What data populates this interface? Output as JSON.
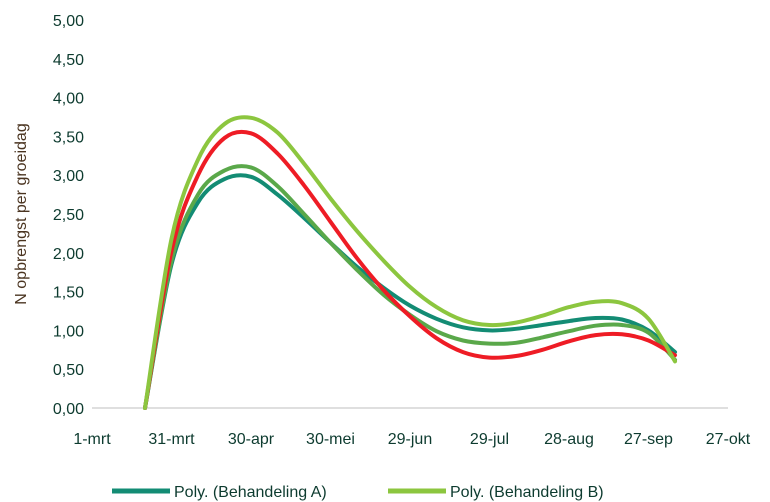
{
  "chart_data": {
    "type": "line",
    "title": "",
    "xlabel": "",
    "ylabel": "N opbrengst per groeidag",
    "x_ticks": [
      "1-mrt",
      "31-mrt",
      "30-apr",
      "30-mei",
      "29-jun",
      "29-jul",
      "28-aug",
      "27-sep",
      "27-okt"
    ],
    "y_ticks": [
      "0,00",
      "0,50",
      "1,00",
      "1,50",
      "2,00",
      "2,50",
      "3,00",
      "3,50",
      "4,00",
      "4,50",
      "5,00"
    ],
    "xlim": [
      "1-mrt",
      "27-okt"
    ],
    "ylim": [
      0,
      5
    ],
    "grid": false,
    "legend_position": "bottom",
    "x_dates": [
      "21-mrt",
      "31-mrt",
      "10-apr",
      "20-apr",
      "30-apr",
      "10-mei",
      "20-mei",
      "30-mei",
      "9-jun",
      "19-jun",
      "29-jun",
      "9-jul",
      "19-jul",
      "29-jul",
      "8-aug",
      "18-aug",
      "28-aug",
      "7-sep",
      "17-sep",
      "27-sep",
      "7-okt"
    ],
    "x": [
      20,
      30,
      40,
      50,
      60,
      70,
      80,
      90,
      100,
      110,
      120,
      130,
      140,
      150,
      160,
      170,
      180,
      190,
      200,
      210,
      220
    ],
    "series": [
      {
        "name": "Poly. (Behandeling A)",
        "color": "#138c74",
        "values": [
          0.0,
          1.85,
          2.65,
          2.95,
          2.98,
          2.75,
          2.45,
          2.13,
          1.82,
          1.55,
          1.32,
          1.15,
          1.04,
          1.0,
          1.02,
          1.07,
          1.12,
          1.16,
          1.14,
          1.0,
          0.72
        ]
      },
      {
        "name": "Poly. (Behandeling B)",
        "color": "#8cc63f",
        "values": [
          0.0,
          2.18,
          3.2,
          3.66,
          3.74,
          3.55,
          3.15,
          2.7,
          2.28,
          1.9,
          1.56,
          1.3,
          1.13,
          1.07,
          1.1,
          1.19,
          1.3,
          1.37,
          1.35,
          1.15,
          0.6
        ]
      },
      {
        "name": "",
        "color": "#ee1c25",
        "values": [
          0.0,
          2.02,
          3.0,
          3.48,
          3.54,
          3.28,
          2.87,
          2.4,
          1.93,
          1.52,
          1.18,
          0.9,
          0.72,
          0.65,
          0.67,
          0.75,
          0.86,
          0.94,
          0.95,
          0.87,
          0.68
        ]
      },
      {
        "name": "",
        "color": "#5aa84a",
        "values": [
          0.0,
          1.9,
          2.75,
          3.06,
          3.1,
          2.86,
          2.5,
          2.13,
          1.78,
          1.46,
          1.2,
          0.99,
          0.87,
          0.83,
          0.84,
          0.91,
          0.99,
          1.06,
          1.07,
          0.97,
          0.62
        ]
      }
    ]
  }
}
